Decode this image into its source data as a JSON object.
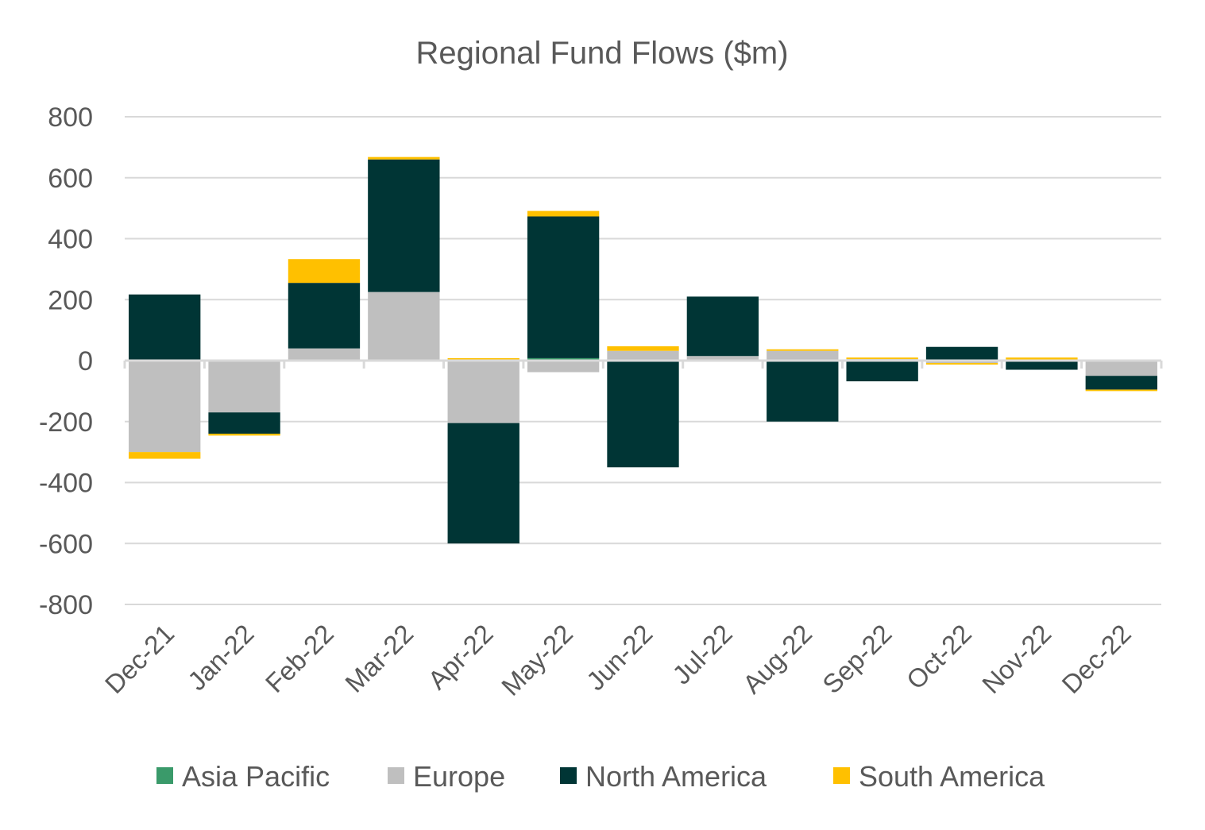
{
  "chart_data": {
    "type": "bar",
    "stacked": true,
    "title": "Regional Fund Flows ($m)",
    "xlabel": "",
    "ylabel": "",
    "ylim": [
      -800,
      800
    ],
    "yticks": [
      800,
      600,
      400,
      200,
      0,
      -200,
      -400,
      -600,
      -800
    ],
    "categories": [
      "Dec-21",
      "Jan-22",
      "Feb-22",
      "Mar-22",
      "Apr-22",
      "May-22",
      "Jun-22",
      "Jul-22",
      "Aug-22",
      "Sep-22",
      "Oct-22",
      "Nov-22",
      "Dec-22"
    ],
    "series": [
      {
        "name": "Asia Pacific",
        "color": "#3a9a6a",
        "values": [
          0,
          0,
          0,
          0,
          0,
          8,
          0,
          0,
          0,
          0,
          0,
          0,
          0
        ]
      },
      {
        "name": "Europe",
        "color": "#bfbfbf",
        "values": [
          -300,
          -170,
          40,
          225,
          -205,
          -38,
          32,
          15,
          32,
          5,
          -8,
          3,
          -50
        ]
      },
      {
        "name": "North America",
        "color": "#003535",
        "values": [
          217,
          -70,
          215,
          435,
          -395,
          465,
          -350,
          195,
          -200,
          -68,
          45,
          -30,
          -45
        ]
      },
      {
        "name": "South America",
        "color": "#ffc000",
        "values": [
          -22,
          -6,
          78,
          8,
          8,
          18,
          15,
          0,
          5,
          5,
          -5,
          7,
          -5
        ]
      }
    ],
    "legend_position": "bottom",
    "grid": true
  }
}
